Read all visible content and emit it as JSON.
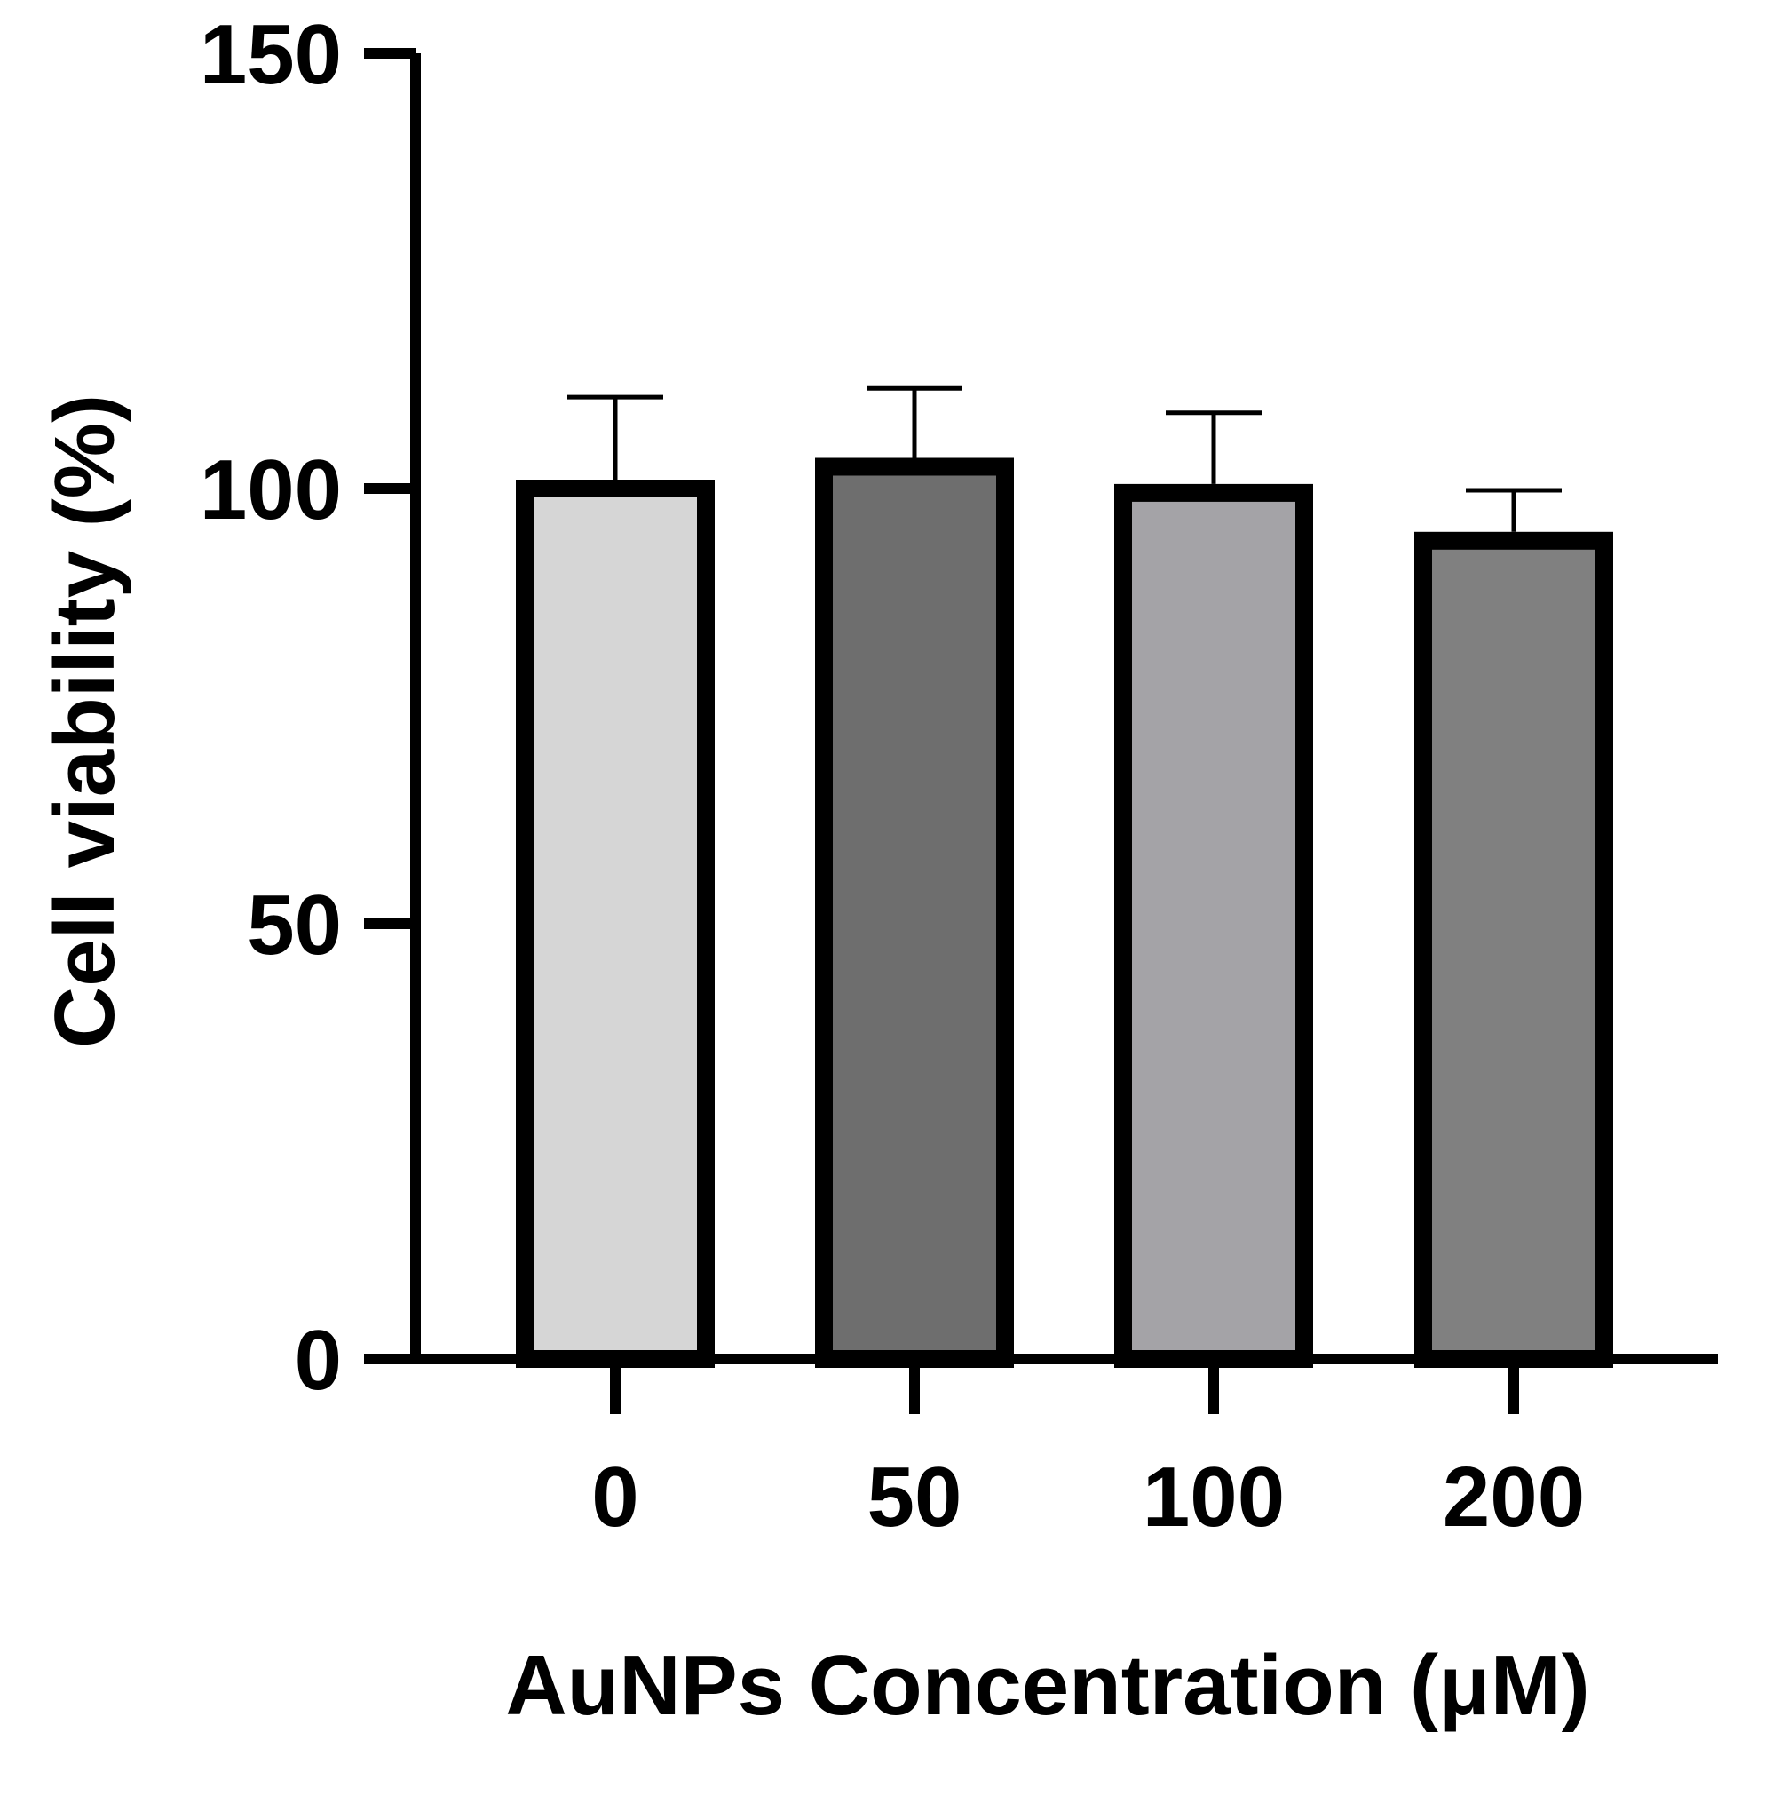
{
  "chart_data": {
    "type": "bar",
    "title": "",
    "xlabel": "AuNPs Concentration (μM)",
    "ylabel": "Cell viability (%)",
    "categories": [
      "0",
      "50",
      "100",
      "200"
    ],
    "values": [
      100,
      102.5,
      99.5,
      94
    ],
    "error_upper": [
      110.5,
      111.5,
      108.7,
      99.8
    ],
    "bar_colors": [
      "#d6d6d6",
      "#6e6e6e",
      "#a4a3a7",
      "#808080"
    ],
    "edge_color": "#000000",
    "ylim": [
      0,
      150
    ],
    "yticks": [
      0,
      50,
      100,
      150
    ],
    "ytick_labels": [
      "0",
      "50",
      "100",
      "150"
    ],
    "grid": false,
    "legend": "none"
  }
}
